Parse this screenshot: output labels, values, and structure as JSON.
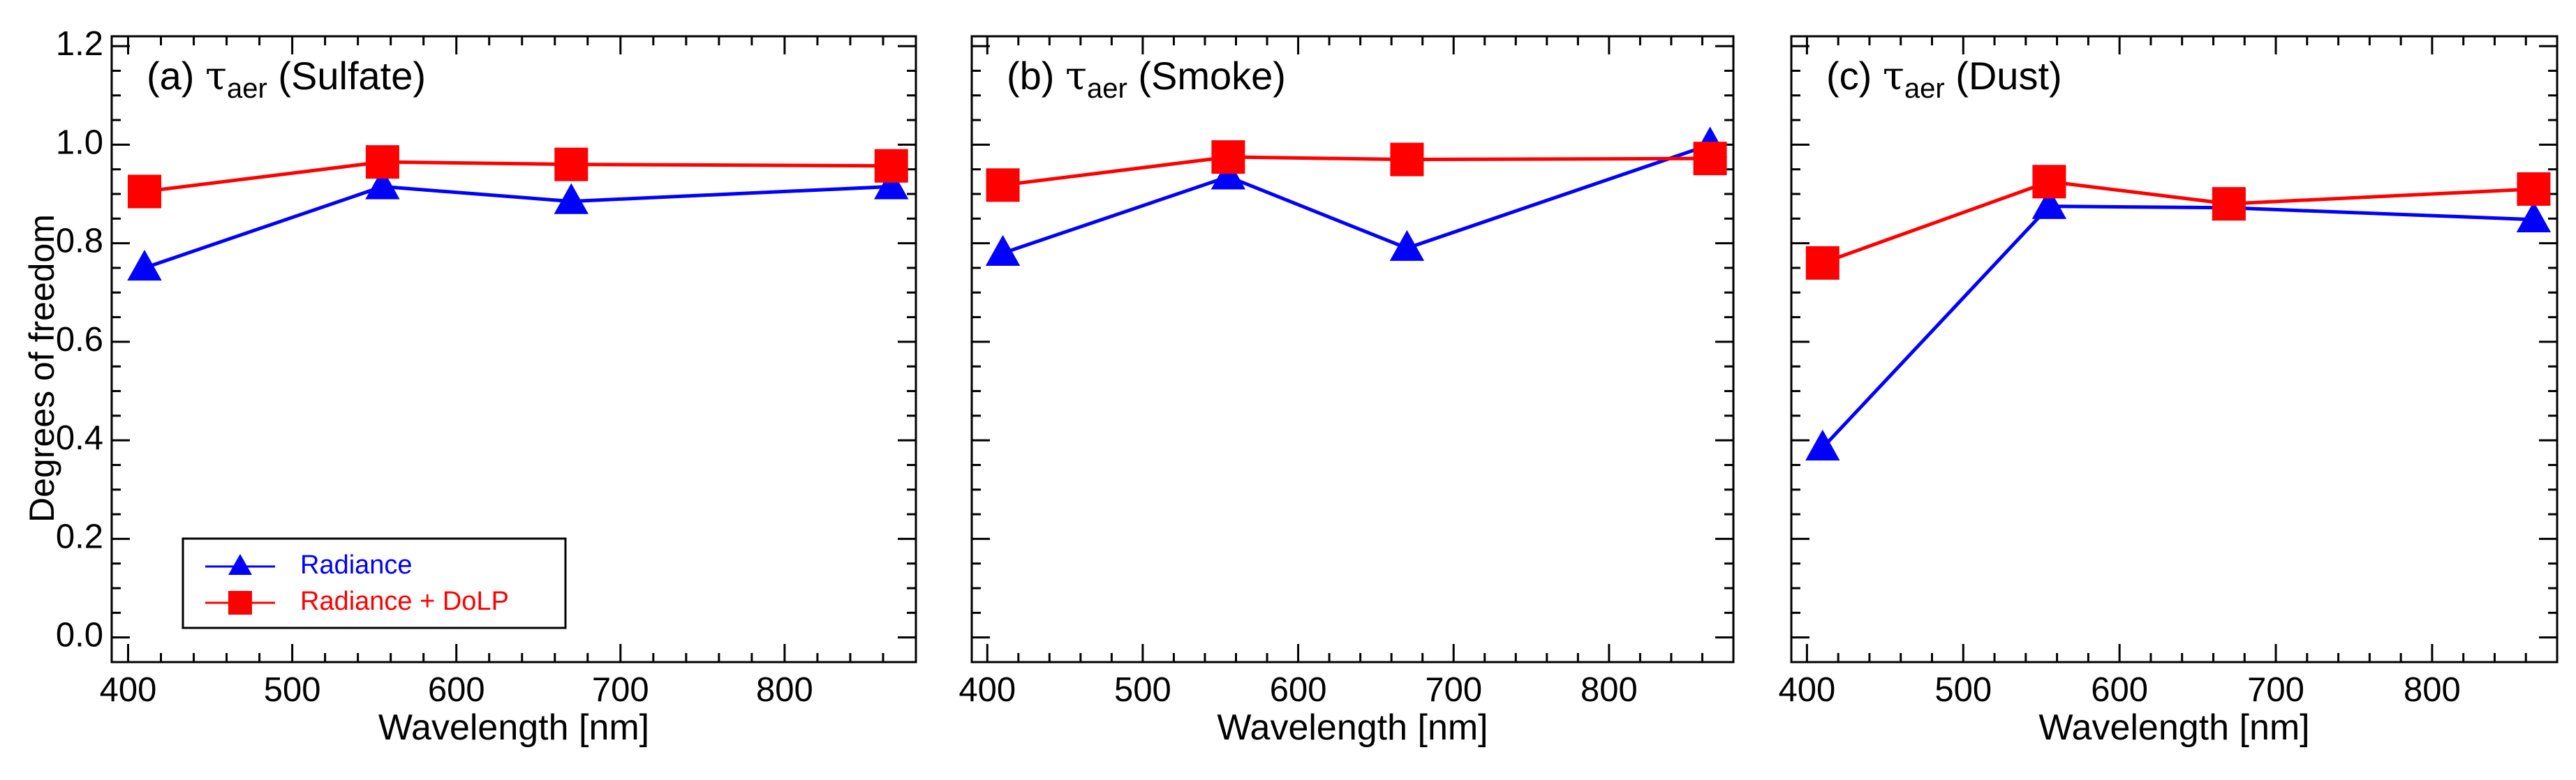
{
  "figure": {
    "ylabel": "Degrees of freedom"
  },
  "legend": {
    "items": [
      {
        "label": "Radiance",
        "color": "#0000ff",
        "marker": "triangle"
      },
      {
        "label": "Radiance + DoLP",
        "color": "#ff0000",
        "marker": "square"
      }
    ]
  },
  "chart_data": [
    {
      "type": "line",
      "panel_label": "(a)",
      "title_symbol": "τ",
      "title_subscript": "aer",
      "title_name": "(Sulfate)",
      "xlabel": "Wavelength [nm]",
      "ylabel": "Degrees of freedom",
      "xlim": [
        390,
        880
      ],
      "ylim": [
        -0.05,
        1.22
      ],
      "xticks": [
        400,
        500,
        600,
        700,
        800
      ],
      "yticks": [
        0.0,
        0.2,
        0.4,
        0.6,
        0.8,
        1.0,
        1.2
      ],
      "ytick_labels": [
        "0.0",
        "0.2",
        "0.4",
        "0.6",
        "0.8",
        "1.0",
        "1.2"
      ],
      "show_ytick_labels": true,
      "x": [
        410,
        555,
        670,
        865
      ],
      "series": [
        {
          "name": "Radiance",
          "color": "#0000ff",
          "marker": "triangle",
          "values": [
            0.75,
            0.915,
            0.885,
            0.915
          ]
        },
        {
          "name": "Radiance + DoLP",
          "color": "#ff0000",
          "marker": "square",
          "values": [
            0.905,
            0.965,
            0.96,
            0.957
          ]
        }
      ],
      "legend_location": "lower-left"
    },
    {
      "type": "line",
      "panel_label": "(b)",
      "title_symbol": "τ",
      "title_subscript": "aer",
      "title_name": "(Smoke)",
      "xlabel": "Wavelength [nm]",
      "xlim": [
        390,
        880
      ],
      "ylim": [
        -0.05,
        1.22
      ],
      "xticks": [
        400,
        500,
        600,
        700,
        800
      ],
      "yticks": [
        0.0,
        0.2,
        0.4,
        0.6,
        0.8,
        1.0,
        1.2
      ],
      "show_ytick_labels": false,
      "x": [
        410,
        555,
        670,
        865
      ],
      "series": [
        {
          "name": "Radiance",
          "color": "#0000ff",
          "marker": "triangle",
          "values": [
            0.78,
            0.935,
            0.79,
            1.0
          ]
        },
        {
          "name": "Radiance + DoLP",
          "color": "#ff0000",
          "marker": "square",
          "values": [
            0.918,
            0.975,
            0.97,
            0.972
          ]
        }
      ]
    },
    {
      "type": "line",
      "panel_label": "(c)",
      "title_symbol": "τ",
      "title_subscript": "aer",
      "title_name": "(Dust)",
      "xlabel": "Wavelength [nm]",
      "xlim": [
        390,
        880
      ],
      "ylim": [
        -0.05,
        1.22
      ],
      "xticks": [
        400,
        500,
        600,
        700,
        800
      ],
      "yticks": [
        0.0,
        0.2,
        0.4,
        0.6,
        0.8,
        1.0,
        1.2
      ],
      "show_ytick_labels": false,
      "x": [
        410,
        555,
        670,
        865
      ],
      "series": [
        {
          "name": "Radiance",
          "color": "#0000ff",
          "marker": "triangle",
          "values": [
            0.385,
            0.875,
            0.872,
            0.848
          ]
        },
        {
          "name": "Radiance + DoLP",
          "color": "#ff0000",
          "marker": "square",
          "values": [
            0.76,
            0.925,
            0.88,
            0.91
          ]
        }
      ]
    }
  ]
}
